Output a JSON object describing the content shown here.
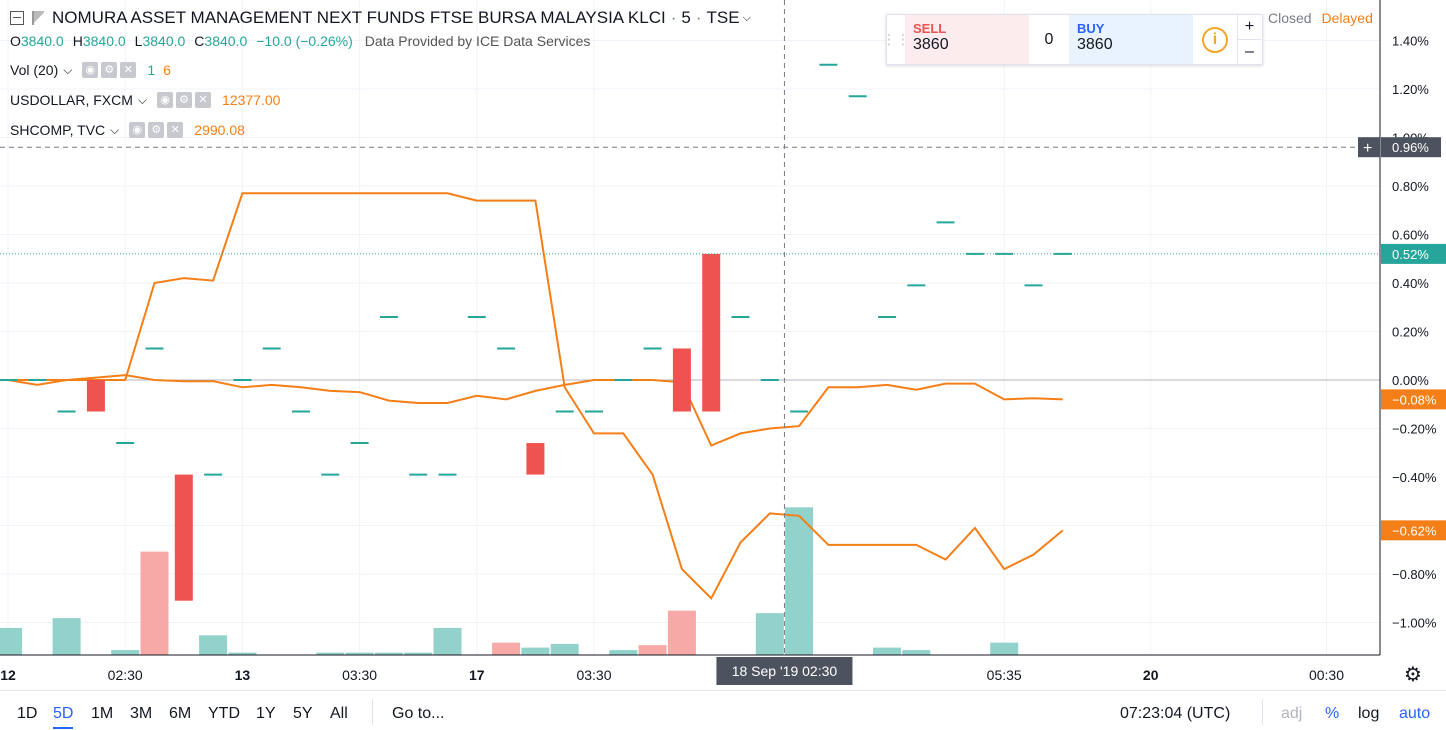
{
  "header": {
    "title": "NOMURA ASSET MANAGEMENT NEXT FUNDS FTSE BURSA MALAYSIA KLCI",
    "interval": "5",
    "exchange": "TSE",
    "separator": "·",
    "ohlc": {
      "o_label": "O",
      "o_value": "3840.0",
      "h_label": "H",
      "h_value": "3840.0",
      "l_label": "L",
      "l_value": "3840.0",
      "c_label": "C",
      "c_value": "3840.0",
      "change": "−10.0 (−0.26%)"
    },
    "provider": "Data Provided by ICE Data Services"
  },
  "indicators": [
    {
      "name": "Vol (20)",
      "values": [
        "1",
        "6"
      ]
    },
    {
      "name": "USDOLLAR, FXCM",
      "value": "12377.00"
    },
    {
      "name": "SHCOMP, TVC",
      "value": "2990.08"
    }
  ],
  "trade_panel": {
    "sell_label": "SELL",
    "sell_value": "3860",
    "qty": "0",
    "buy_label": "BUY",
    "buy_value": "3860",
    "info_icon": "i",
    "plus": "+",
    "minus": "–"
  },
  "market_status": {
    "closed": "Closed",
    "delayed": "Delayed"
  },
  "bottom_bar": {
    "ranges": [
      "1D",
      "5D",
      "1M",
      "3M",
      "6M",
      "YTD",
      "1Y",
      "5Y",
      "All"
    ],
    "active_range": "5D",
    "goto": "Go to...",
    "clock": "07:23:04 (UTC)",
    "adj": "adj",
    "pct": "%",
    "log": "log",
    "auto": "auto"
  },
  "icons": {
    "settings": "gear-icon",
    "collapse": "collapse-icon",
    "flag": "flag-icon"
  },
  "colors": {
    "up": "#26a69a",
    "down": "#ef5350",
    "vol_up": "#92d2cb",
    "vol_down": "#f7a9a7",
    "compare_line": "#f57f17",
    "axis_text": "#131722",
    "grid": "#f0f3fa"
  },
  "chart_data": {
    "type": "line",
    "y_unit": "%",
    "ylim": [
      -1.1,
      1.5
    ],
    "y_ticks": [
      1.4,
      1.2,
      1.0,
      0.8,
      0.6,
      0.4,
      0.2,
      0.0,
      -0.2,
      -0.4,
      -0.6,
      -0.8,
      -1.0
    ],
    "y_tick_labels": [
      "1.40%",
      "1.20%",
      "1.00%",
      "0.80%",
      "0.60%",
      "0.40%",
      "0.20%",
      "0.00%",
      "−0.20%",
      "−0.40%",
      "−0.60%",
      "−0.80%",
      "−1.00%"
    ],
    "x_tick_labels": [
      {
        "index": 0,
        "label": "12"
      },
      {
        "index": 4,
        "label": "02:30"
      },
      {
        "index": 8,
        "label": "13"
      },
      {
        "index": 12,
        "label": "03:30"
      },
      {
        "index": 16,
        "label": "17"
      },
      {
        "index": 20,
        "label": "03:30"
      },
      {
        "index": 34,
        "label": "05:35"
      },
      {
        "index": 39,
        "label": "20"
      },
      {
        "index": 45,
        "label": "00:30"
      }
    ],
    "crosshair": {
      "index": 26.5,
      "date_label": "18 Sep '19   02:30",
      "price_label": "0.96%",
      "price": 0.96
    },
    "last_price_line": {
      "price": 0.52,
      "label": "0.52%"
    },
    "main_series": {
      "name": "NOMURA ASSET MANAGEMENT NEXT FUNDS FTSE BURSA MALAYSIA KLCI",
      "candles": [
        {
          "i": 0,
          "o": 0.0,
          "c": 0.0
        },
        {
          "i": 1,
          "o": 0.0,
          "c": 0.0
        },
        {
          "i": 2,
          "o": -0.13,
          "c": -0.13
        },
        {
          "i": 3,
          "o": 0.0,
          "c": -0.13
        },
        {
          "i": 4,
          "o": -0.26,
          "c": -0.26
        },
        {
          "i": 5,
          "o": 0.13,
          "c": 0.13
        },
        {
          "i": 6,
          "o": -0.39,
          "c": -0.91
        },
        {
          "i": 7,
          "o": -0.39,
          "c": -0.39
        },
        {
          "i": 8,
          "o": 0.0,
          "c": 0.0
        },
        {
          "i": 9,
          "o": 0.13,
          "c": 0.13
        },
        {
          "i": 10,
          "o": -0.13,
          "c": -0.13
        },
        {
          "i": 11,
          "o": -0.39,
          "c": -0.39
        },
        {
          "i": 12,
          "o": -0.26,
          "c": -0.26
        },
        {
          "i": 13,
          "o": 0.26,
          "c": 0.26
        },
        {
          "i": 14,
          "o": -0.39,
          "c": -0.39
        },
        {
          "i": 15,
          "o": -0.39,
          "c": -0.39
        },
        {
          "i": 16,
          "o": 0.26,
          "c": 0.26
        },
        {
          "i": 17,
          "o": 0.13,
          "c": 0.13
        },
        {
          "i": 18,
          "o": -0.26,
          "c": -0.39
        },
        {
          "i": 19,
          "o": -0.13,
          "c": -0.13
        },
        {
          "i": 20,
          "o": -0.13,
          "c": -0.13
        },
        {
          "i": 21,
          "o": 0.0,
          "c": 0.0
        },
        {
          "i": 22,
          "o": 0.13,
          "c": 0.13
        },
        {
          "i": 23,
          "o": 0.13,
          "c": -0.13
        },
        {
          "i": 24,
          "o": 0.52,
          "c": -0.13
        },
        {
          "i": 25,
          "o": 0.26,
          "c": 0.26
        },
        {
          "i": 26,
          "o": 0.0,
          "c": 0.0
        },
        {
          "i": 27,
          "o": -0.13,
          "c": -0.13
        },
        {
          "i": 28,
          "o": 1.3,
          "c": 1.3
        },
        {
          "i": 29,
          "o": 1.17,
          "c": 1.17
        },
        {
          "i": 30,
          "o": 0.26,
          "c": 0.26
        },
        {
          "i": 31,
          "o": 0.39,
          "c": 0.39
        },
        {
          "i": 32,
          "o": 0.65,
          "c": 0.65
        },
        {
          "i": 33,
          "o": 0.52,
          "c": 0.52
        },
        {
          "i": 34,
          "o": 0.52,
          "c": 0.52
        },
        {
          "i": 35,
          "o": 0.39,
          "c": 0.39
        },
        {
          "i": 36,
          "o": 0.52,
          "c": 0.52
        }
      ]
    },
    "volume": {
      "name": "Vol (20)",
      "bars": [
        {
          "i": 0,
          "v": 1.1,
          "dir": "up"
        },
        {
          "i": 2,
          "v": 1.5,
          "dir": "up"
        },
        {
          "i": 4,
          "v": 0.2,
          "dir": "up"
        },
        {
          "i": 5,
          "v": 4.2,
          "dir": "down"
        },
        {
          "i": 7,
          "v": 0.8,
          "dir": "up"
        },
        {
          "i": 8,
          "v": 0.1,
          "dir": "up"
        },
        {
          "i": 11,
          "v": 0.1,
          "dir": "up"
        },
        {
          "i": 12,
          "v": 0.1,
          "dir": "up"
        },
        {
          "i": 13,
          "v": 0.1,
          "dir": "up"
        },
        {
          "i": 14,
          "v": 0.1,
          "dir": "up"
        },
        {
          "i": 15,
          "v": 1.1,
          "dir": "up"
        },
        {
          "i": 17,
          "v": 0.5,
          "dir": "down"
        },
        {
          "i": 18,
          "v": 0.3,
          "dir": "up"
        },
        {
          "i": 19,
          "v": 0.45,
          "dir": "up"
        },
        {
          "i": 21,
          "v": 0.2,
          "dir": "up"
        },
        {
          "i": 22,
          "v": 0.4,
          "dir": "down"
        },
        {
          "i": 23,
          "v": 1.8,
          "dir": "down"
        },
        {
          "i": 26,
          "v": 1.7,
          "dir": "up"
        },
        {
          "i": 27,
          "v": 6.0,
          "dir": "up"
        },
        {
          "i": 30,
          "v": 0.3,
          "dir": "up"
        },
        {
          "i": 31,
          "v": 0.2,
          "dir": "up"
        },
        {
          "i": 34,
          "v": 0.5,
          "dir": "up"
        }
      ],
      "vmax": 6.5
    },
    "compare_series": [
      {
        "name": "USDOLLAR, FXCM",
        "last_label": "−0.08%",
        "last_value": -0.08,
        "values": [
          0.0,
          -0.02,
          0.0,
          0.01,
          0.02,
          0.0,
          -0.005,
          -0.005,
          -0.03,
          -0.02,
          -0.03,
          -0.045,
          -0.05,
          -0.085,
          -0.095,
          -0.095,
          -0.065,
          -0.08,
          -0.045,
          -0.02,
          0.0,
          0.0,
          0.0,
          -0.01,
          -0.27,
          -0.22,
          -0.2,
          -0.19,
          -0.03,
          -0.03,
          -0.02,
          -0.04,
          -0.015,
          -0.015,
          -0.08,
          -0.075,
          -0.08
        ]
      },
      {
        "name": "SHCOMP, TVC",
        "last_label": "−0.62%",
        "last_value": -0.62,
        "values": [
          0.0,
          null,
          null,
          null,
          0.0,
          0.4,
          0.42,
          0.41,
          0.77,
          0.77,
          0.77,
          0.77,
          0.77,
          0.77,
          0.77,
          0.77,
          0.74,
          0.74,
          0.74,
          -0.03,
          -0.22,
          -0.22,
          -0.39,
          -0.78,
          -0.9,
          -0.67,
          -0.55,
          -0.56,
          -0.68,
          -0.68,
          -0.68,
          -0.68,
          -0.74,
          -0.61,
          -0.78,
          -0.72,
          -0.62
        ]
      }
    ]
  }
}
